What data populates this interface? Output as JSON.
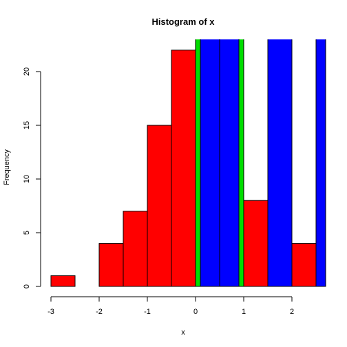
{
  "chart_data": {
    "type": "bar",
    "title": "Histogram of x",
    "xlabel": "x",
    "ylabel": "Frequency",
    "xlim": [
      -3.0,
      2.7
    ],
    "ylim": [
      0,
      23
    ],
    "x_ticks": [
      -3,
      -2,
      -1,
      0,
      1,
      2
    ],
    "y_ticks": [
      0,
      5,
      10,
      15,
      20
    ],
    "grid": false,
    "histogram_bins": [
      {
        "start": -3.0,
        "end": -2.5,
        "count": 1
      },
      {
        "start": -2.5,
        "end": -2.0,
        "count": 0
      },
      {
        "start": -2.0,
        "end": -1.5,
        "count": 4
      },
      {
        "start": -1.5,
        "end": -1.0,
        "count": 7
      },
      {
        "start": -1.0,
        "end": -0.5,
        "count": 15
      },
      {
        "start": -0.5,
        "end": 0.0,
        "count": 22
      },
      {
        "start": 1.0,
        "end": 1.5,
        "count": 8
      },
      {
        "start": 2.0,
        "end": 2.5,
        "count": 4
      }
    ],
    "overlay_bars": [
      {
        "start": 0.0,
        "end": 0.1,
        "color": "#00dd00"
      },
      {
        "start": 0.1,
        "end": 0.5,
        "color": "#0000ff"
      },
      {
        "start": 0.5,
        "end": 0.9,
        "color": "#0000ff"
      },
      {
        "start": 0.9,
        "end": 1.0,
        "color": "#00dd00"
      },
      {
        "start": 1.5,
        "end": 2.0,
        "color": "#0000ff"
      },
      {
        "start": 2.5,
        "end": 2.7,
        "color": "#0000ff"
      }
    ],
    "colors": {
      "histogram": "#ff0000",
      "overlay_primary": "#0000ff",
      "overlay_accent": "#00dd00",
      "outline": "#000000"
    }
  }
}
